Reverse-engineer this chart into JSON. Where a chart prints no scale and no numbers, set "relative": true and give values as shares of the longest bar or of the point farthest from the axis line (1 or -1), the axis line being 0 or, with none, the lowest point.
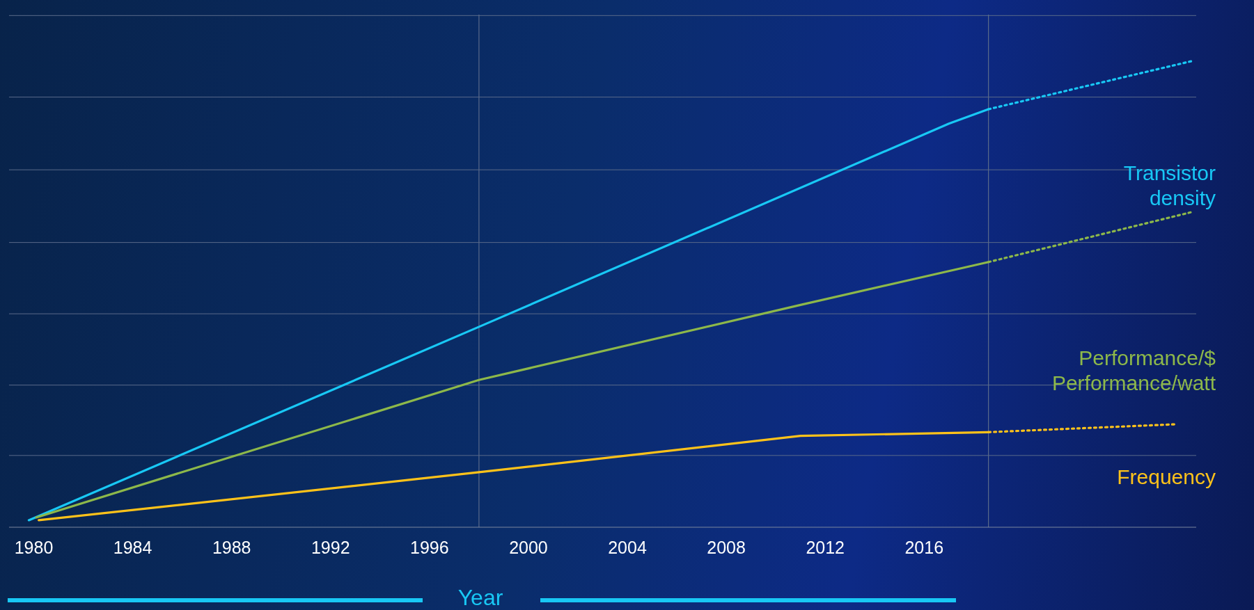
{
  "chart_data": {
    "type": "line",
    "relative": true,
    "xlabel": "Year",
    "xlim": [
      1979,
      2027
    ],
    "xticks": [
      1980,
      1984,
      1988,
      1992,
      1996,
      2000,
      2004,
      2008,
      2012,
      2016
    ],
    "ref_lines": [
      {
        "axis": "x",
        "value": 1998,
        "color": "#5a6a8a"
      },
      {
        "axis": "x",
        "value": 2018.6,
        "color": "#5a6a8a"
      },
      {
        "axis": "y",
        "value": 0.154,
        "color": "#5a6a8a"
      },
      {
        "axis": "y",
        "value": 0.305,
        "color": "#5a6a8a"
      },
      {
        "axis": "y",
        "value": 0.458,
        "color": "#5a6a8a"
      },
      {
        "axis": "y",
        "value": 0.611,
        "color": "#5a6a8a"
      },
      {
        "axis": "y",
        "value": 0.767,
        "color": "#5a6a8a"
      },
      {
        "axis": "y",
        "value": 0.923,
        "color": "#5a6a8a"
      },
      {
        "axis": "y",
        "value": 1.098,
        "color": "#5a6a8a"
      }
    ],
    "series": [
      {
        "name": "Transistor density",
        "color": "#18c8f5",
        "line_style": "solid",
        "x": [
          1979.8,
          1998,
          2017,
          2018.6
        ],
        "values": [
          0.015,
          0.43,
          0.866,
          0.897
        ]
      },
      {
        "name": "Performance/$ Performance/watt",
        "color": "#8db84a",
        "line_style": "solid",
        "x": [
          1980.1,
          1998,
          2011,
          2018.6
        ],
        "values": [
          0.021,
          0.316,
          0.477,
          0.569
        ]
      },
      {
        "name": "Frequency",
        "color": "#fdc21a",
        "line_style": "solid",
        "x": [
          1980.2,
          1998,
          2011,
          2018.6
        ],
        "values": [
          0.015,
          0.118,
          0.196,
          0.204
        ]
      },
      {
        "color": "#18c8f5",
        "line_style": "dotted",
        "x": [
          2018.6,
          2026.8
        ],
        "values": [
          0.897,
          1.0
        ]
      },
      {
        "color": "#8db84a",
        "line_style": "dotted",
        "x": [
          2018.6,
          2026.8
        ],
        "values": [
          0.569,
          0.676
        ]
      },
      {
        "color": "#fdc21a",
        "line_style": "dotted",
        "x": [
          2018.6,
          2026.2
        ],
        "values": [
          0.204,
          0.221
        ]
      }
    ]
  }
}
